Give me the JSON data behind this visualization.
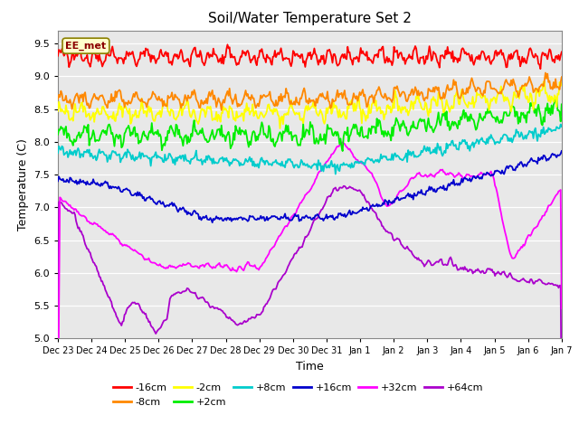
{
  "title": "Soil/Water Temperature Set 2",
  "xlabel": "Time",
  "ylabel": "Temperature (C)",
  "ylim": [
    5.0,
    9.7
  ],
  "background_color": "#ffffff",
  "plot_bg_color": "#e8e8e8",
  "annotation_text": "EE_met",
  "annotation_bg": "#ffffcc",
  "annotation_border": "#8B8000",
  "tick_labels": [
    "Dec 23",
    "Dec 24",
    "Dec 25",
    "Dec 26",
    "Dec 27",
    "Dec 28",
    "Dec 29",
    "Dec 30",
    "Dec 31",
    "Jan 1",
    "Jan 2",
    "Jan 3",
    "Jan 4",
    "Jan 5",
    "Jan 6",
    "Jan 7"
  ],
  "colors": {
    "-16cm": "#ff0000",
    "-8cm": "#ff8800",
    "-2cm": "#ffff00",
    "+2cm": "#00ee00",
    "+8cm": "#00cccc",
    "+16cm": "#0000cc",
    "+32cm": "#ff00ff",
    "+64cm": "#aa00cc"
  },
  "legend_row1": [
    "-16cm",
    "-8cm",
    "-2cm",
    "+2cm",
    "+8cm",
    "+16cm"
  ],
  "legend_row2": [
    "+32cm",
    "+64cm"
  ],
  "legend_colors_row1": [
    "#ff0000",
    "#ff8800",
    "#ffff00",
    "#00ee00",
    "#00cccc",
    "#0000cc"
  ],
  "legend_colors_row2": [
    "#ff00ff",
    "#aa00cc"
  ]
}
